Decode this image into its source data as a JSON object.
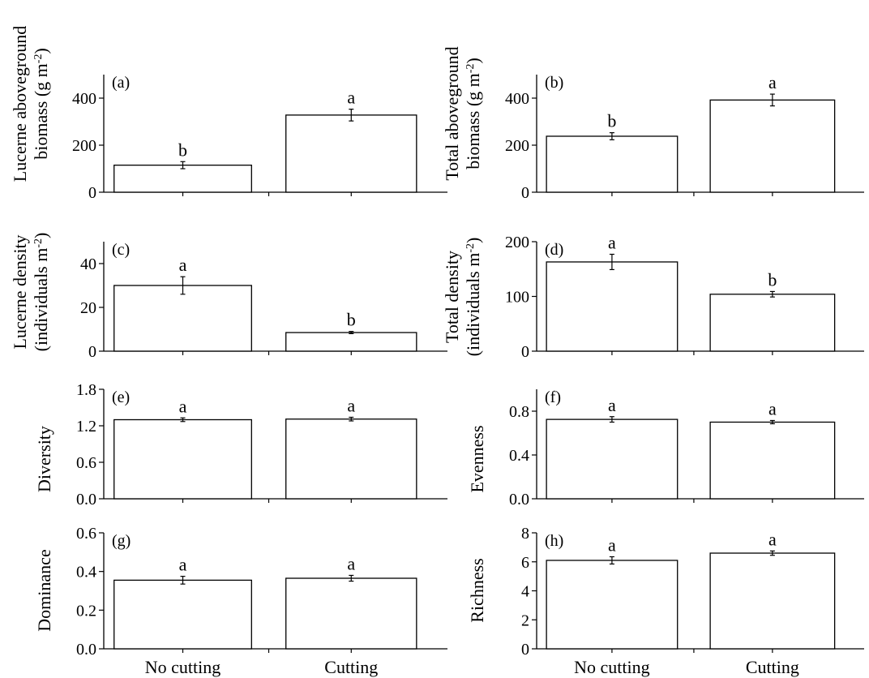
{
  "chart_data": [
    {
      "type": "bar",
      "panel": "(a)",
      "ylabel_lines": [
        "Lucerne aboveground",
        "biomass (g m",
        "-2",
        ")"
      ],
      "categories": [
        "No cutting",
        "Cutting"
      ],
      "values": [
        115,
        328
      ],
      "errors": [
        15,
        25
      ],
      "letters": [
        "b",
        "a"
      ],
      "ylim": [
        0,
        500
      ],
      "yticks": [
        0,
        200,
        400
      ],
      "ytick_labels": [
        "0",
        "200",
        "400"
      ]
    },
    {
      "type": "bar",
      "panel": "(b)",
      "ylabel_lines": [
        "Total aboveground",
        "biomass (g m",
        "-2",
        ")"
      ],
      "categories": [
        "No cutting",
        "Cutting"
      ],
      "values": [
        238,
        392
      ],
      "errors": [
        15,
        25
      ],
      "letters": [
        "b",
        "a"
      ],
      "ylim": [
        0,
        500
      ],
      "yticks": [
        0,
        200,
        400
      ],
      "ytick_labels": [
        "0",
        "200",
        "400"
      ]
    },
    {
      "type": "bar",
      "panel": "(c)",
      "ylabel_lines": [
        "Lucerne density",
        "(individuals m",
        "-2",
        ")"
      ],
      "categories": [
        "No cutting",
        "Cutting"
      ],
      "values": [
        30,
        8.5
      ],
      "errors": [
        4,
        0.5
      ],
      "letters": [
        "a",
        "b"
      ],
      "ylim": [
        0,
        50
      ],
      "yticks": [
        0,
        20,
        40
      ],
      "ytick_labels": [
        "0",
        "20",
        "40"
      ]
    },
    {
      "type": "bar",
      "panel": "(d)",
      "ylabel_lines": [
        "Total density",
        "(individuals m",
        "-2",
        ")"
      ],
      "categories": [
        "No cutting",
        "Cutting"
      ],
      "values": [
        163,
        104
      ],
      "errors": [
        14,
        5
      ],
      "letters": [
        "a",
        "b"
      ],
      "ylim": [
        0,
        200
      ],
      "yticks": [
        0,
        100,
        200
      ],
      "ytick_labels": [
        "0",
        "100",
        "200"
      ]
    },
    {
      "type": "bar",
      "panel": "(e)",
      "ylabel_lines": [
        "Diversity"
      ],
      "categories": [
        "No cutting",
        "Cutting"
      ],
      "values": [
        1.3,
        1.31
      ],
      "errors": [
        0.03,
        0.03
      ],
      "letters": [
        "a",
        "a"
      ],
      "ylim": [
        0,
        1.8
      ],
      "yticks": [
        0,
        0.6,
        1.2,
        1.8
      ],
      "ytick_labels": [
        "0.0",
        "0.6",
        "1.2",
        "1.8"
      ]
    },
    {
      "type": "bar",
      "panel": "(f)",
      "ylabel_lines": [
        "Evenness"
      ],
      "categories": [
        "No cutting",
        "Cutting"
      ],
      "values": [
        0.725,
        0.7
      ],
      "errors": [
        0.025,
        0.015
      ],
      "letters": [
        "a",
        "a"
      ],
      "ylim": [
        0,
        1.0
      ],
      "yticks": [
        0,
        0.4,
        0.8
      ],
      "ytick_labels": [
        "0.0",
        "0.4",
        "0.8"
      ]
    },
    {
      "type": "bar",
      "panel": "(g)",
      "ylabel_lines": [
        "Dominance"
      ],
      "categories": [
        "No cutting",
        "Cutting"
      ],
      "values": [
        0.355,
        0.365
      ],
      "errors": [
        0.02,
        0.015
      ],
      "letters": [
        "a",
        "a"
      ],
      "ylim": [
        0,
        0.6
      ],
      "yticks": [
        0,
        0.2,
        0.4,
        0.6
      ],
      "ytick_labels": [
        "0.0",
        "0.2",
        "0.4",
        "0.6"
      ]
    },
    {
      "type": "bar",
      "panel": "(h)",
      "ylabel_lines": [
        "Richness"
      ],
      "categories": [
        "No cutting",
        "Cutting"
      ],
      "values": [
        6.1,
        6.6
      ],
      "errors": [
        0.25,
        0.15
      ],
      "letters": [
        "a",
        "a"
      ],
      "ylim": [
        0,
        8
      ],
      "yticks": [
        0,
        2,
        4,
        6,
        8
      ],
      "ytick_labels": [
        "0",
        "2",
        "4",
        "6",
        "8"
      ]
    }
  ]
}
